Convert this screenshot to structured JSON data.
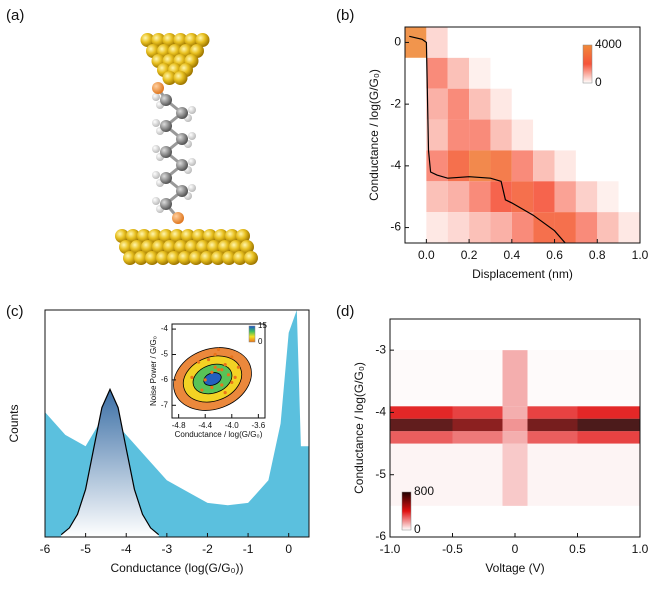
{
  "panel_labels": [
    "(a)",
    "(b)",
    "(c)",
    "(d)"
  ],
  "chart_data": [
    {
      "type": "heatmap",
      "xlabel": "Displacement (nm)",
      "ylabel": "Conductance / log(G/G₀)",
      "xbins": [
        -0.1,
        0.0,
        0.1,
        0.2,
        0.3,
        0.4,
        0.5,
        0.6,
        0.7,
        0.8,
        0.9,
        1.0
      ],
      "ybins": [
        0.5,
        -0.5,
        -1.5,
        -2.5,
        -3.5,
        -4.5,
        -5.5,
        -6.5
      ],
      "z": [
        [
          4000,
          500,
          0,
          0,
          0,
          0,
          0,
          0,
          0,
          0,
          0
        ],
        [
          0,
          1500,
          800,
          200,
          0,
          0,
          0,
          0,
          0,
          0,
          0
        ],
        [
          0,
          1000,
          1500,
          800,
          300,
          0,
          0,
          0,
          0,
          0,
          0
        ],
        [
          0,
          800,
          1500,
          1500,
          800,
          300,
          0,
          0,
          0,
          0,
          0
        ],
        [
          0,
          1500,
          2500,
          3500,
          3000,
          1500,
          800,
          300,
          0,
          0,
          0
        ],
        [
          0,
          800,
          1000,
          1500,
          2000,
          2500,
          2000,
          1200,
          600,
          200,
          0
        ],
        [
          0,
          300,
          500,
          800,
          1000,
          1500,
          2500,
          2500,
          1500,
          800,
          300
        ]
      ],
      "colormap": [
        "#ffffff",
        "#f5533a",
        "#f08a3a"
      ],
      "clim": [
        0,
        4000
      ],
      "colorbar_ticks": [
        0,
        4000
      ],
      "xlim": [
        -0.1,
        1.0
      ],
      "ylim": [
        -6.5,
        0.5
      ],
      "xticks": [
        {
          "value": 0,
          "label": "0.0"
        },
        0.2,
        0.4,
        0.6,
        0.8,
        {
          "value": 1,
          "label": "1.0"
        }
      ],
      "yticks": [
        0,
        -2,
        -4,
        -6
      ],
      "trace": {
        "color": "#000000",
        "x": [
          -0.08,
          -0.02,
          0.0,
          0.01,
          0.02,
          0.05,
          0.1,
          0.2,
          0.3,
          0.35,
          0.37,
          0.4,
          0.5,
          0.6,
          0.65
        ],
        "values": [
          0.2,
          0.1,
          0.0,
          -3.5,
          -4.2,
          -4.3,
          -4.4,
          -4.35,
          -4.4,
          -4.5,
          -5.1,
          -5.2,
          -5.6,
          -6.1,
          -6.5
        ]
      }
    },
    {
      "type": "area",
      "xlabel": "Conductance (log(G/G₀))",
      "ylabel": "Counts",
      "x": [
        -6,
        -5.5,
        -5,
        -4.5,
        -4,
        -3.5,
        -3,
        -2.5,
        -2,
        -1.5,
        -1,
        -0.5,
        -0.2,
        0,
        0.2,
        0.3,
        0.5
      ],
      "values": [
        0.55,
        0.45,
        0.4,
        0.55,
        0.45,
        0.35,
        0.25,
        0.2,
        0.15,
        0.14,
        0.15,
        0.25,
        0.5,
        0.9,
        1.0,
        0.4,
        0.4
      ],
      "color": "#5bc0de",
      "fit": {
        "color": "#000000",
        "fill": "#3a6ea5",
        "x": [
          -5.6,
          -5.4,
          -5.2,
          -5.0,
          -4.8,
          -4.6,
          -4.4,
          -4.2,
          -4.0,
          -3.8,
          -3.6,
          -3.4,
          -3.2
        ],
        "values": [
          0.01,
          0.04,
          0.1,
          0.21,
          0.39,
          0.57,
          0.65,
          0.57,
          0.39,
          0.21,
          0.1,
          0.04,
          0.01
        ]
      },
      "xlim": [
        -6,
        0.5
      ],
      "ylim": [
        0,
        1
      ],
      "xticks": [
        -6,
        -5,
        -4,
        -3,
        -2,
        -1,
        0
      ],
      "inset": {
        "type": "scatter",
        "xlabel": "Conductance / log(G/G₀)",
        "ylabel": "Noise Power / G/G₀",
        "x": [
          -4.6,
          -4.5,
          -4.4,
          -4.35,
          -4.3,
          -4.25,
          -4.2,
          -4.15,
          -4.1,
          -4.05,
          -4.0,
          -3.95,
          -3.9,
          -4.45,
          -4.3,
          -4.2,
          -4.1,
          -4.0,
          -4.25,
          -4.15
        ],
        "values": [
          -5.9,
          -5.3,
          -6.0,
          -5.2,
          -5.7,
          -5.0,
          -5.6,
          -6.2,
          -5.4,
          -5.8,
          -5.1,
          -5.9,
          -5.5,
          -6.4,
          -6.3,
          -4.8,
          -6.5,
          -6.1,
          -5.5,
          -5.6
        ],
        "color": "#e8731a",
        "colormap": [
          "#e8731a",
          "#f5e020",
          "#3cc060",
          "#1a4fd0"
        ],
        "clim": [
          0,
          15
        ],
        "colorbar_ticks": [
          0,
          15
        ],
        "xlim": [
          -4.9,
          -3.5
        ],
        "ylim": [
          -7.5,
          -3.8
        ],
        "xticks": [
          -4.8,
          -4.4,
          {
            "value": -4,
            "label": "-4.0"
          },
          -3.6
        ],
        "yticks": [
          -4,
          -5,
          -6,
          -7
        ]
      }
    },
    {
      "type": "heatmap",
      "xlabel": "Voltage (V)",
      "ylabel": "Conductance / log(G/G₀)",
      "xbins": [
        -1,
        -0.5,
        -0.1,
        0,
        0.1,
        0.5,
        1
      ],
      "ybins": [
        -5.5,
        -4.5,
        -4.3,
        -4.1,
        -3.9,
        -3.0
      ],
      "z": [
        [
          20,
          20,
          100,
          100,
          20,
          20
        ],
        [
          300,
          250,
          150,
          150,
          300,
          350
        ],
        [
          700,
          600,
          200,
          200,
          650,
          750
        ],
        [
          400,
          350,
          150,
          150,
          350,
          400
        ],
        [
          10,
          10,
          150,
          150,
          10,
          10
        ]
      ],
      "colormap": [
        "#ffffff",
        "#e01010",
        "#200000"
      ],
      "clim": [
        0,
        800
      ],
      "colorbar_ticks": [
        0,
        800
      ],
      "xlim": [
        -1,
        1
      ],
      "ylim": [
        -6,
        -2.5
      ],
      "xticks": [
        {
          "value": -1,
          "label": "-1.0"
        },
        -0.5,
        0,
        0.5,
        {
          "value": 1,
          "label": "1.0"
        }
      ],
      "yticks": [
        -3,
        -4,
        -5,
        -6
      ]
    }
  ]
}
